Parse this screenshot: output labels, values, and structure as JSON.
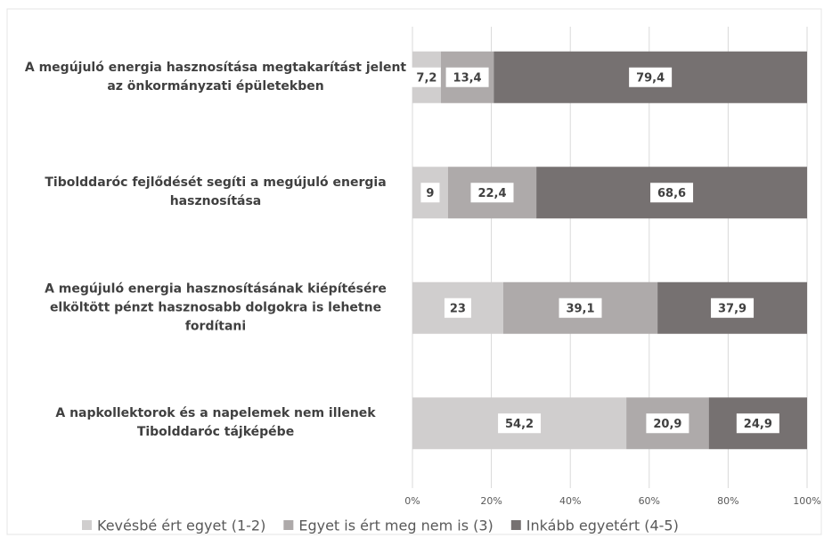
{
  "chart_data": {
    "type": "stacked-bar-horizontal",
    "categories": [
      "A megújuló energia hasznosítása megtakarítást jelent az önkormányzati épületekben",
      "Tibolddaróc fejlődését segíti a megújuló energia hasznosítása",
      "A megújuló energia hasznosításának kiépítésére elköltött pénzt hasznosabb dolgokra is lehetne fordítani",
      "A napkollektorok és a napelemek nem illenek Tibolddaróc tájképébe"
    ],
    "series": [
      {
        "name": "Kevésbé ért egyet (1-2)",
        "color": "#d0cece",
        "values": [
          7.2,
          9,
          23,
          54.2
        ],
        "value_labels": [
          "7,2",
          "9",
          "23",
          "54,2"
        ]
      },
      {
        "name": "Egyet is ért meg nem is (3)",
        "color": "#aeaaaa",
        "values": [
          13.4,
          22.4,
          39.1,
          20.9
        ],
        "value_labels": [
          "13,4",
          "22,4",
          "39,1",
          "20,9"
        ]
      },
      {
        "name": "Inkább egyetért (4-5)",
        "color": "#767171",
        "values": [
          79.4,
          68.6,
          37.9,
          24.9
        ],
        "value_labels": [
          "79,4",
          "68,6",
          "37,9",
          "24,9"
        ]
      }
    ],
    "xlim": [
      0,
      100
    ],
    "xticks": [
      {
        "value": 0,
        "label": "0%"
      },
      {
        "value": 20,
        "label": "20%"
      },
      {
        "value": 40,
        "label": "40%"
      },
      {
        "value": 60,
        "label": "60%"
      },
      {
        "value": 80,
        "label": "80%"
      },
      {
        "value": 100,
        "label": "100%"
      }
    ],
    "grid": true,
    "legend": "bottom"
  }
}
